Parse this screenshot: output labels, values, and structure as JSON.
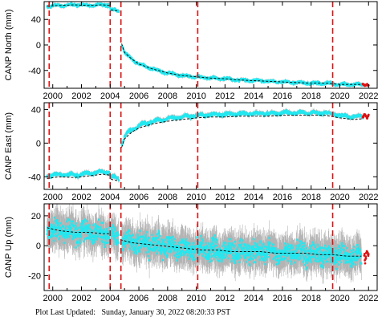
{
  "footer": {
    "label": "Plot Last Updated:",
    "value": "Sunday, January 30, 2022 08:20:33 PST"
  },
  "colors": {
    "data": "#22e8f0",
    "error_bars": "#b4b4b4",
    "model": "#000000",
    "event_lines": "#dd1111",
    "recent": "#dd1111"
  },
  "chart_data": [
    {
      "type": "scatter",
      "ylabel": "CANP North (mm)",
      "xlim": [
        1999.4,
        2022.6
      ],
      "ylim": [
        -68,
        68
      ],
      "xticks": [
        2000,
        2002,
        2004,
        2006,
        2008,
        2010,
        2012,
        2014,
        2016,
        2018,
        2020,
        2022
      ],
      "yticks": [
        -40,
        0,
        40
      ],
      "event_lines": [
        1999.75,
        2004.0,
        2004.75,
        2010.1,
        2019.5
      ],
      "series": [
        {
          "x": [
            1999.6,
            2000.5,
            2001.5,
            2002.5,
            2003.5,
            2003.95,
            2004.05,
            2004.6,
            2004.8,
            2005.0,
            2005.5,
            2006.0,
            2007.0,
            2008.0,
            2009.0,
            2010.0,
            2011.0,
            2012.0,
            2013.0,
            2014.0,
            2015.0,
            2016.0,
            2017.0,
            2018.0,
            2019.0,
            2020.0,
            2021.0,
            2021.6
          ],
          "y": [
            61,
            62,
            63,
            62,
            63,
            62,
            55,
            53,
            2,
            -12,
            -22,
            -30,
            -38,
            -44,
            -48,
            -50,
            -52,
            -53,
            -55,
            -56,
            -57,
            -58,
            -59,
            -60,
            -60,
            -62,
            -62,
            -62
          ]
        },
        {
          "x": [
            2021.6,
            2021.75,
            2021.9,
            2022.0
          ],
          "y": [
            -61,
            -64,
            -62,
            -63
          ]
        }
      ]
    },
    {
      "type": "scatter",
      "ylabel": "CANP East (mm)",
      "xlim": [
        1999.4,
        2022.6
      ],
      "ylim": [
        -55,
        48
      ],
      "xticks": [
        2000,
        2002,
        2004,
        2006,
        2008,
        2010,
        2012,
        2014,
        2016,
        2018,
        2020,
        2022
      ],
      "yticks": [
        -40,
        0,
        40
      ],
      "event_lines": [
        1999.75,
        2004.0,
        2004.75,
        2010.1,
        2019.5
      ],
      "series": [
        {
          "x": [
            1999.6,
            2000.5,
            2001.5,
            2002.5,
            2003.5,
            2003.95,
            2004.05,
            2004.6,
            2004.8,
            2005.0,
            2005.5,
            2006.0,
            2007.0,
            2008.0,
            2009.0,
            2010.0,
            2011.0,
            2012.0,
            2013.0,
            2014.0,
            2015.0,
            2016.0,
            2017.0,
            2018.0,
            2019.0,
            2020.0,
            2021.0,
            2021.6
          ],
          "y": [
            -39,
            -37,
            -38,
            -36,
            -34,
            -35,
            -40,
            -42,
            -2,
            8,
            16,
            21,
            26,
            29,
            31,
            33,
            34,
            34,
            35,
            35,
            35,
            36,
            36,
            36,
            36,
            33,
            31,
            32
          ]
        },
        {
          "x": [
            2021.6,
            2021.75,
            2021.9,
            2022.0
          ],
          "y": [
            31,
            34,
            30,
            33
          ]
        }
      ]
    },
    {
      "type": "scatter",
      "ylabel": "CANP Up (mm)",
      "xlim": [
        1999.4,
        2022.6
      ],
      "ylim": [
        -30,
        28
      ],
      "xticks": [
        2000,
        2002,
        2004,
        2006,
        2008,
        2010,
        2012,
        2014,
        2016,
        2018,
        2020,
        2022
      ],
      "yticks": [
        -20,
        0,
        20
      ],
      "event_lines": [
        1999.75,
        2004.0,
        2004.75,
        2010.1,
        2019.5
      ],
      "series": [
        {
          "x": [
            1999.6,
            2000.5,
            2001.5,
            2002.5,
            2003.5,
            2004.0,
            2004.7,
            2005.5,
            2006.5,
            2007.5,
            2008.5,
            2009.5,
            2010.5,
            2011.5,
            2012.5,
            2013.5,
            2014.5,
            2015.5,
            2016.5,
            2017.5,
            2018.5,
            2019.5,
            2020.5,
            2021.5
          ],
          "y": [
            12,
            10,
            9,
            9,
            8,
            8,
            4,
            2,
            1,
            0,
            -1,
            -2,
            -3,
            -3,
            -4,
            -4,
            -4,
            -5,
            -5,
            -5,
            -6,
            -6,
            -7,
            -7
          ]
        },
        {
          "x": [
            2021.7,
            2021.8,
            2021.9,
            2022.0
          ],
          "y": [
            -6,
            -9,
            -4,
            -8
          ]
        }
      ]
    }
  ]
}
